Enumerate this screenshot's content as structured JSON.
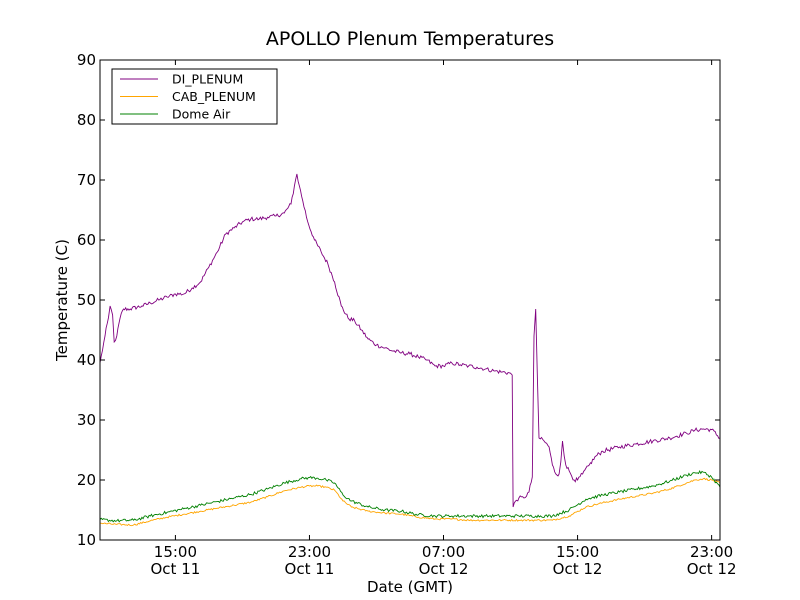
{
  "chart_data": {
    "type": "line",
    "title": "APOLLO Plenum Temperatures",
    "xlabel": "Date (GMT)",
    "ylabel": "Temperature (C)",
    "x_units": "hours since Oct 11 10:30 GMT",
    "xlim": [
      0,
      37
    ],
    "ylim": [
      10,
      90
    ],
    "yticks": [
      10,
      20,
      30,
      40,
      50,
      60,
      70,
      80,
      90
    ],
    "xticks": [
      {
        "x": 4.5,
        "time": "15:00",
        "date": "Oct 11"
      },
      {
        "x": 12.5,
        "time": "23:00",
        "date": "Oct 11"
      },
      {
        "x": 20.5,
        "time": "07:00",
        "date": "Oct 12"
      },
      {
        "x": 28.5,
        "time": "15:00",
        "date": "Oct 12"
      },
      {
        "x": 36.5,
        "time": "23:00",
        "date": "Oct 12"
      }
    ],
    "legend_position": "top-left",
    "series": [
      {
        "name": "DI_PLENUM",
        "color": "#800080",
        "noise": 0.35,
        "points": [
          [
            0,
            39.5
          ],
          [
            0.3,
            44
          ],
          [
            0.5,
            47
          ],
          [
            0.6,
            49
          ],
          [
            0.75,
            47.5
          ],
          [
            0.85,
            43
          ],
          [
            1.0,
            44
          ],
          [
            1.2,
            47
          ],
          [
            1.4,
            48.5
          ],
          [
            1.8,
            48.5
          ],
          [
            2.5,
            49
          ],
          [
            3.0,
            49.5
          ],
          [
            3.5,
            50
          ],
          [
            4.0,
            50.5
          ],
          [
            4.5,
            51
          ],
          [
            5.0,
            51
          ],
          [
            5.5,
            52
          ],
          [
            6.0,
            53
          ],
          [
            6.5,
            55.5
          ],
          [
            7.0,
            58
          ],
          [
            7.5,
            61
          ],
          [
            8.0,
            62
          ],
          [
            8.5,
            63
          ],
          [
            9.0,
            63.5
          ],
          [
            9.5,
            63.5
          ],
          [
            10.0,
            63.8
          ],
          [
            10.5,
            64
          ],
          [
            11.0,
            64.5
          ],
          [
            11.4,
            66
          ],
          [
            11.6,
            69
          ],
          [
            11.75,
            71
          ],
          [
            11.9,
            69
          ],
          [
            12.1,
            66.5
          ],
          [
            12.4,
            63
          ],
          [
            12.8,
            60
          ],
          [
            13.2,
            58
          ],
          [
            13.6,
            56
          ],
          [
            14.0,
            53
          ],
          [
            14.4,
            49
          ],
          [
            14.8,
            47
          ],
          [
            15.2,
            46.5
          ],
          [
            15.6,
            45
          ],
          [
            16.0,
            43.5
          ],
          [
            16.5,
            42.5
          ],
          [
            17.0,
            42
          ],
          [
            17.5,
            41.5
          ],
          [
            18.0,
            41.2
          ],
          [
            18.5,
            41
          ],
          [
            19.0,
            40.5
          ],
          [
            19.5,
            40
          ],
          [
            20.0,
            39
          ],
          [
            20.5,
            39
          ],
          [
            21.0,
            39.5
          ],
          [
            21.5,
            39.2
          ],
          [
            22.0,
            39
          ],
          [
            22.5,
            38.8
          ],
          [
            23.0,
            38.5
          ],
          [
            23.5,
            38.2
          ],
          [
            24.0,
            38
          ],
          [
            24.5,
            37.8
          ],
          [
            24.6,
            37.5
          ],
          [
            24.65,
            15.5
          ],
          [
            24.8,
            16.5
          ],
          [
            25.0,
            17
          ],
          [
            25.3,
            17
          ],
          [
            25.6,
            18
          ],
          [
            25.8,
            20.5
          ],
          [
            25.9,
            44
          ],
          [
            26.0,
            48.5
          ],
          [
            26.1,
            37
          ],
          [
            26.2,
            27
          ],
          [
            26.5,
            26.5
          ],
          [
            26.8,
            25.5
          ],
          [
            27.0,
            22.5
          ],
          [
            27.2,
            21
          ],
          [
            27.4,
            21
          ],
          [
            27.5,
            23
          ],
          [
            27.6,
            26.5
          ],
          [
            27.7,
            24
          ],
          [
            27.8,
            22.5
          ],
          [
            28.0,
            21.5
          ],
          [
            28.3,
            20
          ],
          [
            28.5,
            20
          ],
          [
            28.8,
            21
          ],
          [
            29.2,
            22.5
          ],
          [
            29.6,
            24
          ],
          [
            30.0,
            24.8
          ],
          [
            31.0,
            25.5
          ],
          [
            32.0,
            26
          ],
          [
            33.0,
            26.5
          ],
          [
            34.0,
            27
          ],
          [
            35.0,
            27.8
          ],
          [
            35.5,
            28.3
          ],
          [
            36.0,
            28.5
          ],
          [
            36.5,
            28.4
          ],
          [
            37.0,
            27
          ]
        ]
      },
      {
        "name": "CAB_PLENUM",
        "color": "#FFA500",
        "noise": 0.15,
        "points": [
          [
            0,
            12.8
          ],
          [
            1.0,
            12.6
          ],
          [
            2.0,
            12.5
          ],
          [
            3.0,
            13.2
          ],
          [
            4.0,
            13.8
          ],
          [
            5.0,
            14.3
          ],
          [
            6.0,
            14.8
          ],
          [
            7.0,
            15.3
          ],
          [
            8.0,
            15.8
          ],
          [
            9.0,
            16.3
          ],
          [
            10.0,
            17.2
          ],
          [
            11.0,
            18.2
          ],
          [
            12.0,
            18.8
          ],
          [
            12.5,
            19
          ],
          [
            13.0,
            19
          ],
          [
            13.5,
            18.8
          ],
          [
            14.0,
            18.3
          ],
          [
            14.5,
            16.5
          ],
          [
            15.0,
            15.5
          ],
          [
            16.0,
            14.8
          ],
          [
            17.0,
            14.5
          ],
          [
            18.0,
            14.3
          ],
          [
            19.0,
            13.8
          ],
          [
            20.0,
            13.5
          ],
          [
            21.0,
            13.5
          ],
          [
            22.0,
            13.3
          ],
          [
            23.0,
            13.3
          ],
          [
            24.0,
            13.3
          ],
          [
            25.0,
            13.3
          ],
          [
            26.0,
            13.3
          ],
          [
            27.0,
            13.3
          ],
          [
            28.0,
            14
          ],
          [
            29.0,
            15.5
          ],
          [
            30.0,
            16.2
          ],
          [
            31.0,
            16.8
          ],
          [
            32.0,
            17.3
          ],
          [
            33.0,
            17.8
          ],
          [
            34.0,
            18.5
          ],
          [
            35.0,
            19.5
          ],
          [
            35.5,
            20
          ],
          [
            36.0,
            20.2
          ],
          [
            36.5,
            20
          ],
          [
            37.0,
            19.5
          ]
        ]
      },
      {
        "name": "Dome Air",
        "color": "#008000",
        "noise": 0.25,
        "points": [
          [
            0,
            13.4
          ],
          [
            1.0,
            13.2
          ],
          [
            2.0,
            13.3
          ],
          [
            3.0,
            14
          ],
          [
            4.0,
            14.6
          ],
          [
            5.0,
            15.2
          ],
          [
            6.0,
            15.8
          ],
          [
            7.0,
            16.4
          ],
          [
            8.0,
            17
          ],
          [
            9.0,
            17.6
          ],
          [
            10.0,
            18.5
          ],
          [
            11.0,
            19.5
          ],
          [
            12.0,
            20.2
          ],
          [
            12.5,
            20.4
          ],
          [
            13.0,
            20.3
          ],
          [
            13.5,
            20
          ],
          [
            14.0,
            19.5
          ],
          [
            14.5,
            17.5
          ],
          [
            15.0,
            16.5
          ],
          [
            16.0,
            15.5
          ],
          [
            17.0,
            15
          ],
          [
            18.0,
            14.8
          ],
          [
            19.0,
            14.2
          ],
          [
            20.0,
            14
          ],
          [
            21.0,
            14
          ],
          [
            22.0,
            14
          ],
          [
            23.0,
            14
          ],
          [
            24.0,
            14
          ],
          [
            25.0,
            14
          ],
          [
            26.0,
            14
          ],
          [
            27.0,
            14
          ],
          [
            28.0,
            15
          ],
          [
            29.0,
            16.8
          ],
          [
            30.0,
            17.5
          ],
          [
            31.0,
            18
          ],
          [
            32.0,
            18.5
          ],
          [
            33.0,
            19
          ],
          [
            34.0,
            19.8
          ],
          [
            35.0,
            20.8
          ],
          [
            35.5,
            21.2
          ],
          [
            36.0,
            21.3
          ],
          [
            36.5,
            20.5
          ],
          [
            37.0,
            18.8
          ]
        ]
      }
    ]
  }
}
